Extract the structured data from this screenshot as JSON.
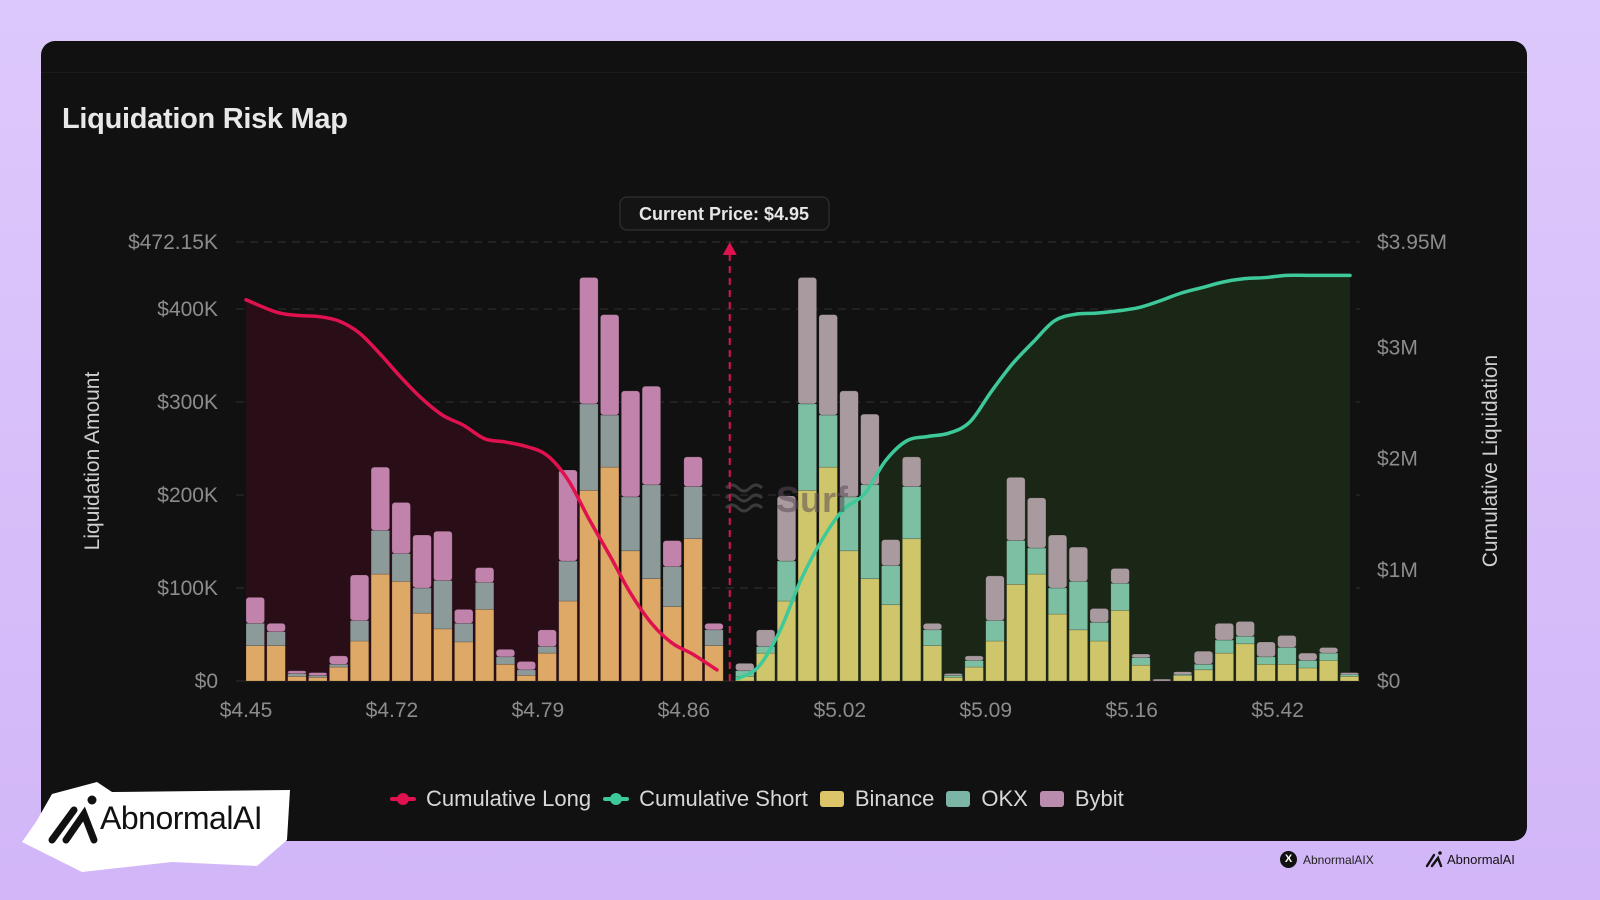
{
  "title": "Liquidation Risk Map",
  "annotation": {
    "current_price_label": "Current Price: $4.95"
  },
  "watermark": "Surf",
  "brand": {
    "badge_text": "AbnormalAI",
    "footer_handle": "AbnormalAIX",
    "footer_brand": "AbnormalAI",
    "x_icon": "x-logo-icon"
  },
  "colors": {
    "background": "#111111",
    "page": "#d6bdf9",
    "cumulative_long": "#e0114f",
    "cumulative_short": "#3ec99a",
    "binance_long": "#dea866",
    "binance_short": "#cfc66b",
    "okx_long": "#8d9a9a",
    "okx_short": "#7dbfa2",
    "bybit_long": "#c183ab",
    "bybit_short": "#a99a9f",
    "long_area": "#2a0e17",
    "short_area": "#1a2716"
  },
  "chart_data": {
    "type": "bar",
    "title": "Liquidation Risk Map",
    "xlabel": "",
    "ylabel": "Liquidation Amount",
    "ylabel_right": "Cumulative Liquidation",
    "ylim": [
      0,
      472150
    ],
    "ylim_right": [
      0,
      3950000
    ],
    "yticks": [
      "$0",
      "$100K",
      "$200K",
      "$300K",
      "$400K",
      "$472.15K"
    ],
    "yticks_right": [
      "$0",
      "$1M",
      "$2M",
      "$3M",
      "$3.95M"
    ],
    "xtick_labels": [
      "$4.45",
      "$4.72",
      "$4.79",
      "$4.86",
      "$5.02",
      "$5.09",
      "$5.16",
      "$5.42"
    ],
    "xtick_bar_index": [
      0,
      7,
      14,
      21,
      28,
      35,
      42,
      49
    ],
    "current_price": 4.95,
    "current_price_bar_position": 23.2,
    "grid": true,
    "legend": [
      "Cumulative Long",
      "Cumulative Short",
      "Binance",
      "OKX",
      "Bybit"
    ],
    "legend_position": "bottom",
    "long_bar_count": 23,
    "series": [
      {
        "name": "Binance",
        "values": [
          38000,
          38000,
          5000,
          4000,
          15000,
          43000,
          115000,
          107000,
          73000,
          56000,
          42000,
          77000,
          18000,
          6000,
          30000,
          86000,
          205000,
          230000,
          140000,
          110000,
          80000,
          153000,
          38000,
          5000,
          30000,
          86000,
          205000,
          230000,
          140000,
          110000,
          82000,
          153000,
          38000,
          4000,
          15000,
          43000,
          104000,
          115000,
          72000,
          55000,
          43000,
          76000,
          17000,
          0,
          6000,
          12000,
          30000,
          40000,
          18000,
          18000,
          14000,
          22000,
          5000
        ]
      },
      {
        "name": "OKX",
        "values": [
          24000,
          15000,
          3000,
          2000,
          3000,
          22000,
          47000,
          30000,
          27000,
          52000,
          20000,
          29000,
          8000,
          6000,
          7000,
          43000,
          93000,
          56000,
          58000,
          101000,
          43000,
          56000,
          17000,
          6000,
          7000,
          43000,
          93000,
          56000,
          58000,
          101000,
          42000,
          56000,
          17000,
          2000,
          7000,
          22000,
          47000,
          28000,
          28000,
          52000,
          20000,
          29000,
          8000,
          0,
          1000,
          6000,
          14000,
          8000,
          8000,
          18000,
          8000,
          8000,
          2000
        ]
      },
      {
        "name": "Bybit",
        "values": [
          28000,
          9000,
          3000,
          3000,
          9000,
          49000,
          68000,
          55000,
          57000,
          53000,
          15000,
          16000,
          8000,
          9000,
          18000,
          98000,
          136000,
          108000,
          114000,
          106000,
          28000,
          32000,
          7000,
          8000,
          18000,
          70000,
          136000,
          108000,
          114000,
          76000,
          28000,
          32000,
          7000,
          2000,
          5000,
          48000,
          68000,
          54000,
          57000,
          37000,
          15000,
          16000,
          4000,
          2000,
          3000,
          14000,
          18000,
          16000,
          16000,
          13000,
          8000,
          6000,
          2000
        ]
      },
      {
        "name": "Cumulative Long",
        "axis": "right",
        "values": [
          3430000,
          3320000,
          3290000,
          3280000,
          3240000,
          3130000,
          2940000,
          2730000,
          2540000,
          2390000,
          2300000,
          2180000,
          2150000,
          2110000,
          2030000,
          1810000,
          1460000,
          1130000,
          790000,
          520000,
          340000,
          240000,
          100000
        ]
      },
      {
        "name": "Cumulative Short",
        "axis": "right",
        "values": [
          20000,
          130000,
          450000,
          910000,
          1270000,
          1540000,
          1680000,
          1980000,
          2160000,
          2200000,
          2230000,
          2330000,
          2600000,
          2850000,
          3050000,
          3240000,
          3300000,
          3310000,
          3330000,
          3360000,
          3420000,
          3490000,
          3540000,
          3590000,
          3620000,
          3630000,
          3650000,
          3650000,
          3650000,
          3650000
        ]
      }
    ]
  },
  "axis": {
    "left_title": "Liquidation Amount",
    "right_title": "Cumulative Liquidation"
  },
  "legend": {
    "cumulative_long": "Cumulative Long",
    "cumulative_short": "Cumulative Short",
    "binance": "Binance",
    "okx": "OKX",
    "bybit": "Bybit"
  }
}
